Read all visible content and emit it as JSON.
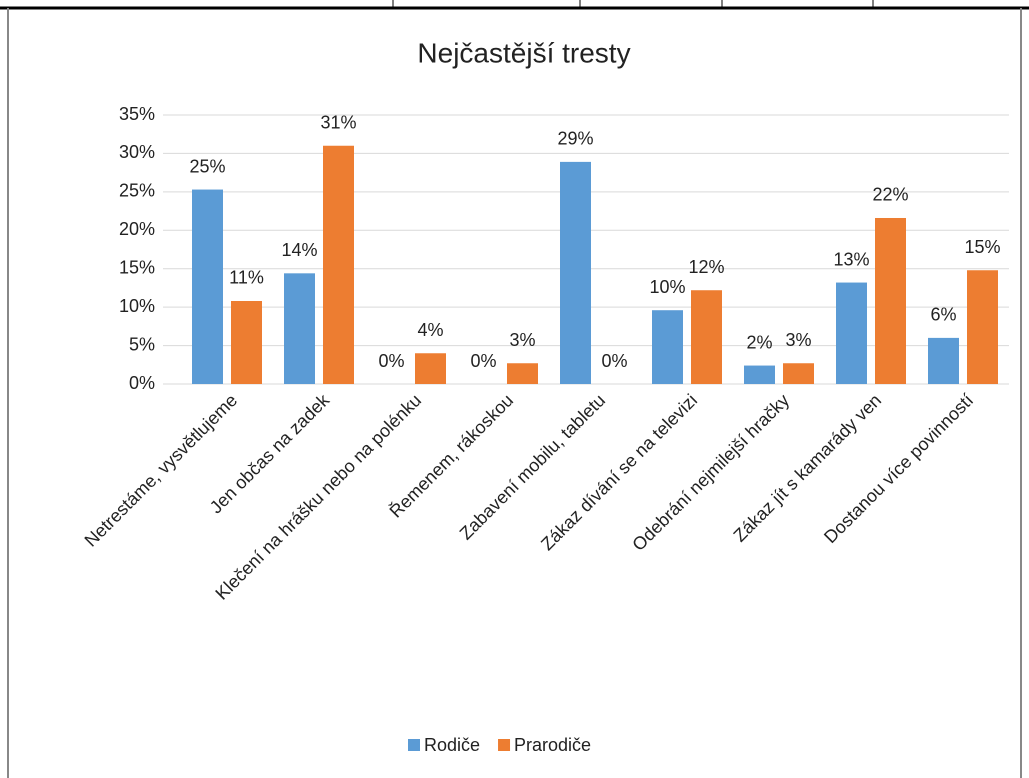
{
  "chart_data": {
    "type": "bar",
    "title": "Nejčastější tresty",
    "categories": [
      "Netrestáme, vysvětlujeme",
      "Jen občas na zadek",
      "Klečení na hrášku nebo na polénku",
      "Řemenem, rákoskou",
      "Zabavení mobilu, tabletu",
      "Zákaz dívání se na televizi",
      "Odebrání nejmilejší hračky",
      "Zákaz jít s kamarády ven",
      "Dostanou více povinností"
    ],
    "series": [
      {
        "name": "Rodiče",
        "color": "#5b9bd5",
        "values": [
          25.3,
          14.4,
          0,
          0,
          28.9,
          9.6,
          2.4,
          13.2,
          6.0
        ],
        "value_labels": [
          "25%",
          "14%",
          "0%",
          "0%",
          "29%",
          "10%",
          "2%",
          "13%",
          "6%"
        ]
      },
      {
        "name": "Prarodiče",
        "color": "#ed7d31",
        "values": [
          10.8,
          31.0,
          4.0,
          2.7,
          0,
          12.2,
          2.7,
          21.6,
          14.8
        ],
        "value_labels": [
          "11%",
          "31%",
          "4%",
          "3%",
          "0%",
          "12%",
          "3%",
          "22%",
          "15%"
        ]
      }
    ],
    "ylim": [
      0,
      35
    ],
    "yticks": [
      {
        "value": 0,
        "label": "0%"
      },
      {
        "value": 5,
        "label": "5%"
      },
      {
        "value": 10,
        "label": "10%"
      },
      {
        "value": 15,
        "label": "15%"
      },
      {
        "value": 20,
        "label": "20%"
      },
      {
        "value": 25,
        "label": "25%"
      },
      {
        "value": 30,
        "label": "30%"
      },
      {
        "value": 35,
        "label": "35%"
      }
    ],
    "grid": true,
    "legend": "bottom"
  }
}
